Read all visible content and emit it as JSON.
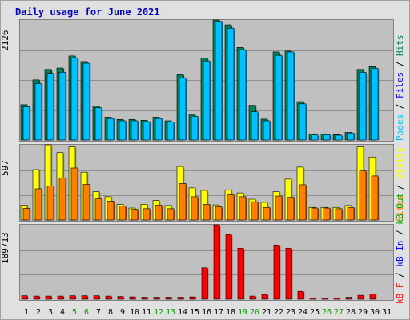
{
  "chart_data": {
    "type": "bar",
    "title": "Daily usage for June 2021",
    "categories": [
      "1",
      "2",
      "3",
      "4",
      "5",
      "6",
      "7",
      "8",
      "9",
      "10",
      "11",
      "12",
      "13",
      "14",
      "15",
      "16",
      "17",
      "18",
      "19",
      "20",
      "21",
      "22",
      "23",
      "24",
      "25",
      "26",
      "27",
      "28",
      "29",
      "30",
      "31"
    ],
    "weekend_days": [
      "5",
      "6",
      "12",
      "13",
      "19",
      "20",
      "26",
      "27"
    ],
    "panels": [
      {
        "ymax_label": "2126",
        "ymax": 2126,
        "series": [
          {
            "name": "Hits",
            "color": "#00805c",
            "values": [
              625,
              1065,
              1250,
              1275,
              1490,
              1390,
              600,
              405,
              365,
              365,
              350,
              405,
              340,
              1160,
              445,
              1455,
              2126,
              2040,
              1640,
              615,
              370,
              1560,
              1575,
              680,
              110,
              110,
              95,
              135,
              1250,
              1300
            ]
          },
          {
            "name": "Files",
            "color": "#0000ff",
            "values": [
              590,
              1000,
              1180,
              1200,
              1450,
              1360,
              570,
              380,
              340,
              340,
              325,
              380,
              320,
              1100,
              420,
              1400,
              2100,
              1980,
              1600,
              500,
              340,
              1500,
              1560,
              640,
              90,
              95,
              85,
              125,
              1200,
              1270
            ]
          },
          {
            "name": "Pages",
            "color": "#00c0ff",
            "values": [
              590,
              1000,
              1180,
              1200,
              1450,
              1360,
              570,
              380,
              340,
              340,
              325,
              380,
              320,
              1100,
              420,
              1400,
              2100,
              1980,
              1600,
              500,
              340,
              1500,
              1560,
              640,
              90,
              95,
              85,
              125,
              1200,
              1270
            ]
          }
        ],
        "right_label": [
          {
            "text": "Pages",
            "color": "#00c0ff"
          },
          {
            "text": " / ",
            "color": "#000000"
          },
          {
            "text": "Files",
            "color": "#0000ff"
          },
          {
            "text": " / ",
            "color": "#000000"
          },
          {
            "text": "Hits",
            "color": "#00805c"
          }
        ]
      },
      {
        "ymax_label": "597",
        "ymax": 597,
        "series": [
          {
            "name": "Visits",
            "color": "#ffff00",
            "values": [
              118,
              400,
              597,
              535,
              580,
              380,
              225,
              185,
              123,
              95,
              125,
              155,
              115,
              425,
              255,
              235,
              120,
              240,
              215,
              165,
              140,
              225,
              325,
              420,
              100,
              100,
              100,
              115,
              580,
              500
            ]
          },
          {
            "name": "Sites",
            "color": "#ff8000",
            "values": [
              93,
              248,
              270,
              333,
              413,
              283,
              168,
              150,
              110,
              85,
              90,
              118,
              90,
              290,
              185,
              125,
              105,
              200,
              185,
              145,
              100,
              190,
              180,
              280,
              95,
              95,
              90,
              100,
              390,
              350
            ]
          }
        ],
        "right_label": [
          {
            "text": "Sites",
            "color": "#ff8000"
          },
          {
            "text": " / ",
            "color": "#000000"
          },
          {
            "text": "Visits",
            "color": "#ffff00"
          }
        ]
      },
      {
        "ymax_label": "189713",
        "ymax": 189713,
        "series": [
          {
            "name": "KBytes",
            "color": "#ff0000",
            "values": [
              9000,
              8000,
              8000,
              8000,
              9000,
              9000,
              9000,
              8000,
              7000,
              6000,
              5000,
              5000,
              5000,
              5000,
              6000,
              80000,
              189713,
              165000,
              130000,
              8000,
              12000,
              138000,
              130000,
              20000,
              3000,
              3000,
              3000,
              5000,
              10000,
              13000
            ]
          }
        ],
        "right_label": [
          {
            "text": "kB F",
            "color": "#ff0000"
          },
          {
            "text": " / ",
            "color": "#000000"
          },
          {
            "text": "kB In",
            "color": "#0000ff"
          },
          {
            "text": " / ",
            "color": "#000000"
          },
          {
            "text": "kB Out",
            "color": "#00a000"
          }
        ]
      }
    ]
  }
}
